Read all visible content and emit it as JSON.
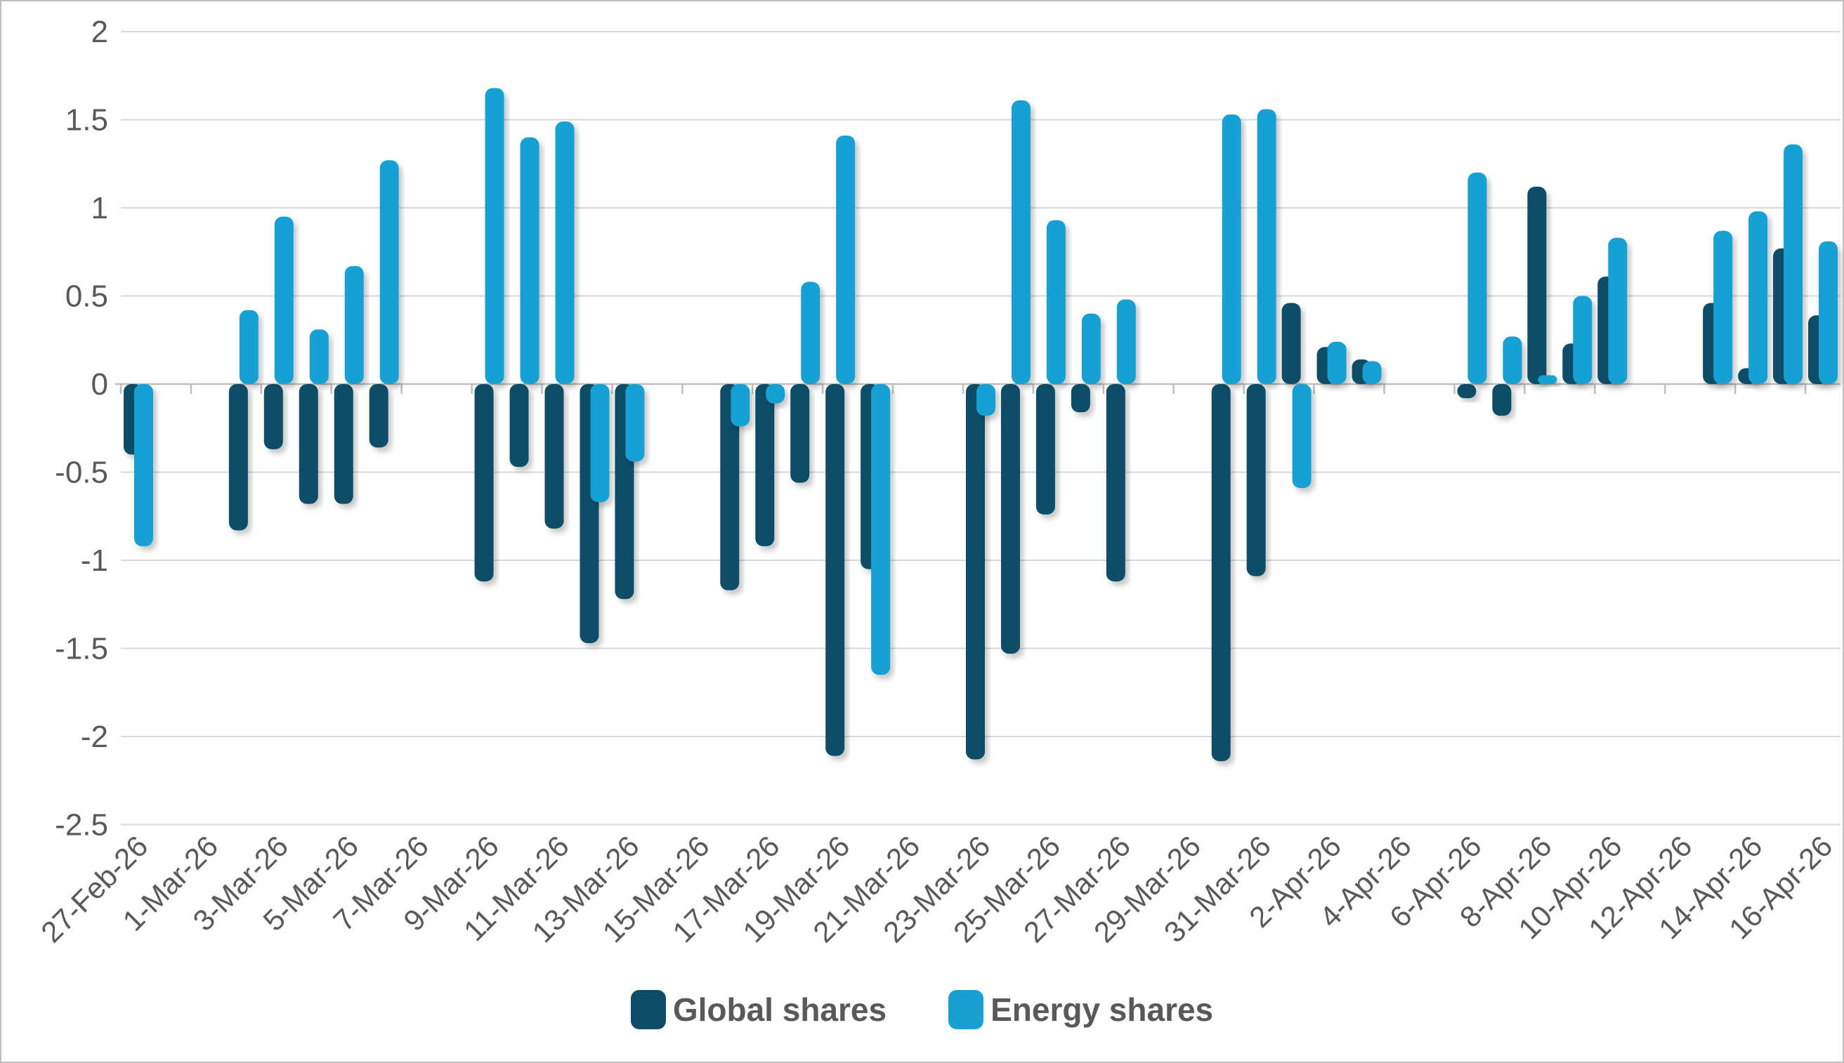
{
  "chart_data": {
    "type": "bar",
    "title": "",
    "x": [
      "27-Feb-26",
      "2-Mar-26",
      "3-Mar-26",
      "4-Mar-26",
      "5-Mar-26",
      "6-Mar-26",
      "9-Mar-26",
      "10-Mar-26",
      "11-Mar-26",
      "12-Mar-26",
      "13-Mar-26",
      "16-Mar-26",
      "17-Mar-26",
      "18-Mar-26",
      "19-Mar-26",
      "20-Mar-26",
      "23-Mar-26",
      "24-Mar-26",
      "25-Mar-26",
      "26-Mar-26",
      "27-Mar-26",
      "30-Mar-26",
      "31-Mar-26",
      "1-Apr-26",
      "2-Apr-26",
      "3-Apr-26",
      "6-Apr-26",
      "7-Apr-26",
      "8-Apr-26",
      "9-Apr-26",
      "10-Apr-26",
      "13-Apr-26",
      "14-Apr-26",
      "15-Apr-26",
      "16-Apr-26"
    ],
    "slots": [
      0,
      3,
      4,
      5,
      6,
      7,
      10,
      11,
      12,
      13,
      14,
      17,
      18,
      19,
      20,
      21,
      24,
      25,
      26,
      27,
      28,
      31,
      32,
      33,
      34,
      35,
      38,
      39,
      40,
      41,
      42,
      45,
      46,
      47,
      48
    ],
    "series": [
      {
        "name": "Global shares",
        "color": "#0e4d67",
        "values": [
          -0.4,
          -0.83,
          -0.37,
          -0.68,
          -0.68,
          -0.36,
          -1.12,
          -0.47,
          -0.82,
          -1.47,
          -1.22,
          -1.17,
          -0.92,
          -0.56,
          -2.11,
          -1.05,
          -2.13,
          -1.53,
          -0.74,
          -0.16,
          -1.12,
          -2.14,
          -1.09,
          0.46,
          0.21,
          0.14,
          -0.08,
          -0.18,
          1.12,
          0.23,
          0.61,
          0.46,
          0.09,
          0.77,
          0.39
        ]
      },
      {
        "name": "Energy shares",
        "color": "#18a0d3",
        "values": [
          -0.92,
          0.42,
          0.95,
          0.31,
          0.67,
          1.27,
          1.68,
          1.4,
          1.49,
          -0.67,
          -0.44,
          -0.24,
          -0.11,
          0.58,
          1.41,
          -1.65,
          -0.18,
          1.61,
          0.93,
          0.4,
          0.48,
          1.53,
          1.56,
          -0.59,
          0.24,
          0.13,
          1.2,
          0.27,
          0.05,
          0.5,
          0.83,
          0.87,
          0.98,
          1.36,
          0.81
        ]
      }
    ],
    "x_tick_labels": [
      "27-Feb-26",
      "1-Mar-26",
      "3-Mar-26",
      "5-Mar-26",
      "7-Mar-26",
      "9-Mar-26",
      "11-Mar-26",
      "13-Mar-26",
      "15-Mar-26",
      "17-Mar-26",
      "19-Mar-26",
      "21-Mar-26",
      "23-Mar-26",
      "25-Mar-26",
      "27-Mar-26",
      "29-Mar-26",
      "31-Mar-26",
      "2-Apr-26",
      "4-Apr-26",
      "6-Apr-26",
      "8-Apr-26",
      "10-Apr-26",
      "12-Apr-26",
      "14-Apr-26",
      "16-Apr-26"
    ],
    "y_tick_labels": [
      "2",
      "1.5",
      "1",
      "0.5",
      "0",
      "-0.5",
      "-1",
      "-1.5",
      "-2",
      "-2.5"
    ],
    "ylim": [
      -2.5,
      2
    ],
    "n_slots": 49,
    "grid": true,
    "legend_position": "bottom",
    "colors": {
      "gridline": "#d9d9d9",
      "axis": "#bfbfbf",
      "tick_text": "#595959"
    }
  }
}
